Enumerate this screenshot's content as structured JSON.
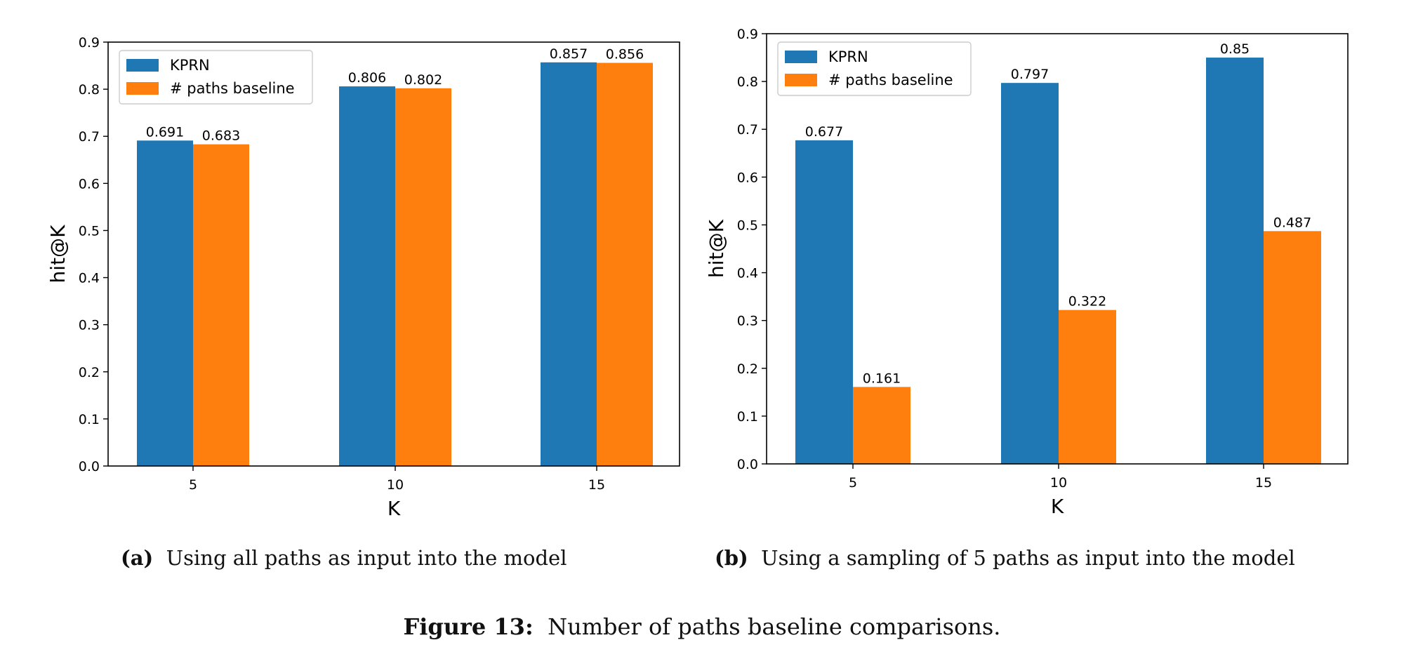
{
  "colors": {
    "kprn": "#1f77b4",
    "baseline": "#ff7f0e"
  },
  "chart_data": [
    {
      "type": "bar",
      "xlabel": "K",
      "ylabel": "hit@K",
      "ylim": [
        0,
        0.9
      ],
      "yticks": [
        "0.0",
        "0.1",
        "0.2",
        "0.3",
        "0.4",
        "0.5",
        "0.6",
        "0.7",
        "0.8",
        "0.9"
      ],
      "categories": [
        "5",
        "10",
        "15"
      ],
      "legend_position": "top-left",
      "series": [
        {
          "name": "KPRN",
          "values": [
            0.691,
            0.806,
            0.857
          ],
          "labels": [
            "0.691",
            "0.806",
            "0.857"
          ]
        },
        {
          "name": "# paths baseline",
          "values": [
            0.683,
            0.802,
            0.856
          ],
          "labels": [
            "0.683",
            "0.802",
            "0.856"
          ]
        }
      ]
    },
    {
      "type": "bar",
      "xlabel": "K",
      "ylabel": "hit@K",
      "ylim": [
        0,
        0.9
      ],
      "yticks": [
        "0.0",
        "0.1",
        "0.2",
        "0.3",
        "0.4",
        "0.5",
        "0.6",
        "0.7",
        "0.8",
        "0.9"
      ],
      "categories": [
        "5",
        "10",
        "15"
      ],
      "legend_position": "top-left",
      "series": [
        {
          "name": "KPRN",
          "values": [
            0.677,
            0.797,
            0.85
          ],
          "labels": [
            "0.677",
            "0.797",
            "0.85"
          ]
        },
        {
          "name": "# paths baseline",
          "values": [
            0.161,
            0.322,
            0.487
          ],
          "labels": [
            "0.161",
            "0.322",
            "0.487"
          ]
        }
      ]
    }
  ],
  "captions": {
    "a_label": "(a)",
    "a_text": "Using all paths as input into the model",
    "b_label": "(b)",
    "b_text": "Using a sampling of 5 paths as input into the model",
    "figure_label": "Figure 13:",
    "figure_text": "Number of paths baseline comparisons."
  }
}
